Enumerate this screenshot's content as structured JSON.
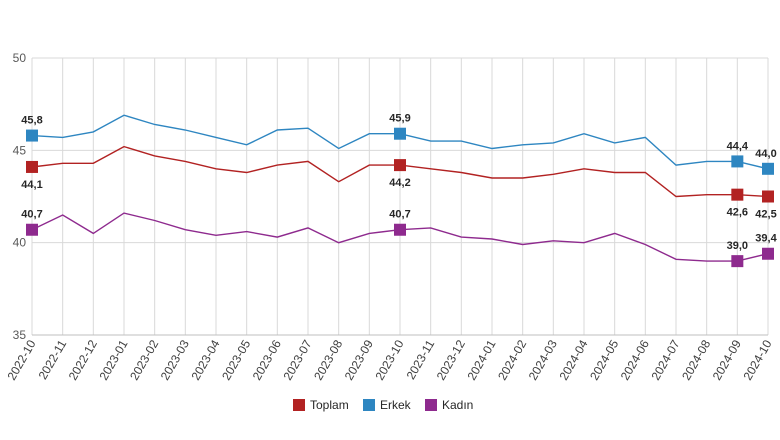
{
  "chart_data": {
    "type": "line",
    "title": "",
    "xlabel": "",
    "ylabel": "",
    "ylim": [
      35,
      50
    ],
    "yticks": [
      35,
      40,
      45,
      50
    ],
    "grid": true,
    "legend_position": "bottom-center",
    "x": [
      "2022-10",
      "2022-11",
      "2022-12",
      "2023-01",
      "2023-02",
      "2023-03",
      "2023-04",
      "2023-05",
      "2023-06",
      "2023-07",
      "2023-08",
      "2023-09",
      "2023-10",
      "2023-11",
      "2023-12",
      "2024-01",
      "2024-02",
      "2024-03",
      "2024-04",
      "2024-05",
      "2024-06",
      "2024-07",
      "2024-08",
      "2024-09",
      "2024-10"
    ],
    "series": [
      {
        "name": "Toplam",
        "color": "#b22222",
        "values": [
          44.1,
          44.3,
          44.3,
          45.2,
          44.7,
          44.4,
          44.0,
          43.8,
          44.2,
          44.4,
          43.3,
          44.2,
          44.2,
          44.0,
          43.8,
          43.5,
          43.5,
          43.7,
          44.0,
          43.8,
          43.8,
          42.5,
          42.6,
          42.6,
          42.5
        ],
        "markers": [
          {
            "index": 0,
            "label": "44,1",
            "pos": "below"
          },
          {
            "index": 12,
            "label": "44,2",
            "pos": "below"
          },
          {
            "index": 23,
            "label": "42,6",
            "pos": "below"
          },
          {
            "index": 24,
            "label": "42,5",
            "pos": "below"
          }
        ]
      },
      {
        "name": "Erkek",
        "color": "#2e86c1",
        "values": [
          45.8,
          45.7,
          46.0,
          46.9,
          46.4,
          46.1,
          45.7,
          45.3,
          46.1,
          46.2,
          45.1,
          45.9,
          45.9,
          45.5,
          45.5,
          45.1,
          45.3,
          45.4,
          45.9,
          45.4,
          45.7,
          44.2,
          44.4,
          44.4,
          44.0
        ],
        "markers": [
          {
            "index": 0,
            "label": "45,8",
            "pos": "above"
          },
          {
            "index": 12,
            "label": "45,9",
            "pos": "above"
          },
          {
            "index": 23,
            "label": "44,4",
            "pos": "above"
          },
          {
            "index": 24,
            "label": "44,0",
            "pos": "above"
          }
        ]
      },
      {
        "name": "Kadın",
        "color": "#8e2a8e",
        "values": [
          40.7,
          41.5,
          40.5,
          41.6,
          41.2,
          40.7,
          40.4,
          40.6,
          40.3,
          40.8,
          40.0,
          40.5,
          40.7,
          40.8,
          40.3,
          40.2,
          39.9,
          40.1,
          40.0,
          40.5,
          39.9,
          39.1,
          39.0,
          39.0,
          39.4
        ],
        "markers": [
          {
            "index": 0,
            "label": "40,7",
            "pos": "above"
          },
          {
            "index": 12,
            "label": "40,7",
            "pos": "above"
          },
          {
            "index": 23,
            "label": "39,0",
            "pos": "above"
          },
          {
            "index": 24,
            "label": "39,4",
            "pos": "above"
          }
        ]
      }
    ]
  }
}
